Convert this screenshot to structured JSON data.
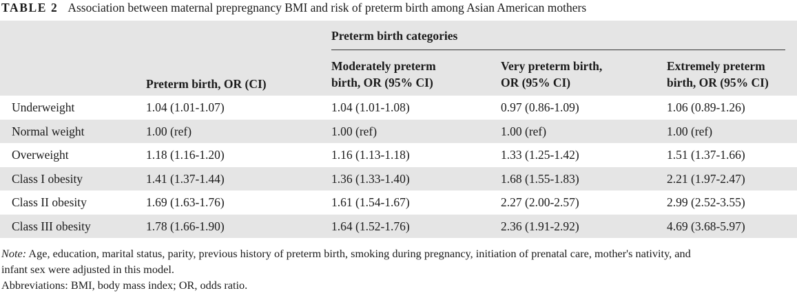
{
  "caption": {
    "label": "TABLE 2",
    "text": "Association between maternal prepregnancy BMI and risk of preterm birth among Asian American mothers"
  },
  "header": {
    "group_title": "Preterm birth categories",
    "col1": [
      "Preterm birth, OR (CI)"
    ],
    "col2": [
      "Moderately preterm",
      "birth, OR (95% CI)"
    ],
    "col3": [
      "Very preterm birth,",
      "OR (95% CI)"
    ],
    "col4": [
      "Extremely preterm",
      "birth, OR (95% CI)"
    ]
  },
  "rows": [
    {
      "label": "Underweight",
      "c1": "1.04 (1.01-1.07)",
      "c2": "1.04 (1.01-1.08)",
      "c3": "0.97 (0.86-1.09)",
      "c4": "1.06 (0.89-1.26)"
    },
    {
      "label": "Normal weight",
      "c1": "1.00 (ref)",
      "c2": "1.00 (ref)",
      "c3": "1.00 (ref)",
      "c4": "1.00 (ref)"
    },
    {
      "label": "Overweight",
      "c1": "1.18 (1.16-1.20)",
      "c2": "1.16 (1.13-1.18)",
      "c3": "1.33 (1.25-1.42)",
      "c4": "1.51 (1.37-1.66)"
    },
    {
      "label": "Class I obesity",
      "c1": "1.41 (1.37-1.44)",
      "c2": "1.36 (1.33-1.40)",
      "c3": "1.68 (1.55-1.83)",
      "c4": "2.21 (1.97-2.47)"
    },
    {
      "label": "Class II obesity",
      "c1": "1.69 (1.63-1.76)",
      "c2": "1.61 (1.54-1.67)",
      "c3": "2.27 (2.00-2.57)",
      "c4": "2.99 (2.52-3.55)"
    },
    {
      "label": "Class III obesity",
      "c1": "1.78 (1.66-1.90)",
      "c2": "1.64 (1.52-1.76)",
      "c3": "2.36 (1.91-2.92)",
      "c4": "4.69 (3.68-5.97)"
    }
  ],
  "notes": {
    "note_lead": "Note:",
    "note_line1": "Age, education, marital status, parity, previous history of preterm birth, smoking during pregnancy, initiation of prenatal care, mother's nativity, and",
    "note_line2": "infant sex were adjusted in this model.",
    "abbreviations": "Abbreviations: BMI, body mass index; OR, odds ratio."
  }
}
